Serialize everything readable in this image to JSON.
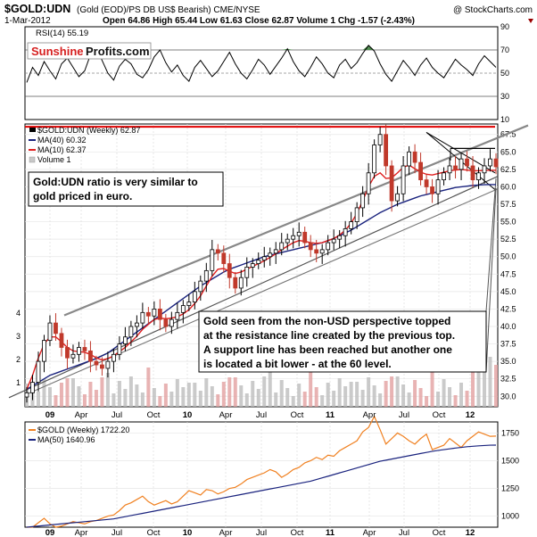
{
  "chart_data": [
    {
      "type": "line",
      "panel": "rsi",
      "title": "RSI(14) 55.19",
      "ylim": [
        10,
        90
      ],
      "y_ticks": [
        10,
        30,
        50,
        70,
        90
      ],
      "reference_lines": [
        30,
        50,
        70
      ],
      "series": [
        {
          "name": "RSI(14)",
          "values": [
            42,
            55,
            48,
            60,
            52,
            45,
            58,
            63,
            55,
            47,
            52,
            66,
            72,
            61,
            50,
            44,
            56,
            62,
            58,
            49,
            46,
            53,
            64,
            70,
            59,
            51,
            57,
            48,
            43,
            55,
            61,
            54,
            47,
            52,
            60,
            68,
            58,
            50,
            45,
            53,
            62,
            57,
            49,
            56,
            63,
            71,
            60,
            52,
            47,
            55,
            64,
            58,
            50,
            46,
            57,
            62,
            54,
            59,
            67,
            74,
            69,
            58,
            49,
            43,
            52,
            61,
            55,
            48,
            57,
            63,
            55,
            50,
            46,
            54,
            62,
            57,
            53,
            48,
            58,
            65,
            60,
            55
          ]
        }
      ],
      "overbought_fill_color": "#4b8a4b"
    },
    {
      "type": "candlestick",
      "panel": "price",
      "title": "$GOLD:UDN (Weekly) 62.87",
      "ylim": [
        28.5,
        69
      ],
      "y_ticks": [
        30.0,
        32.5,
        35.0,
        37.5,
        40.0,
        42.5,
        45.0,
        47.5,
        50.0,
        52.5,
        55.0,
        57.5,
        60.0,
        62.5,
        65.0,
        67.5
      ],
      "volume_ticks": [
        1,
        2,
        3,
        4
      ],
      "x_tick_labels": [
        "09",
        "Apr",
        "Jul",
        "Oct",
        "10",
        "Apr",
        "Jul",
        "Oct",
        "11",
        "Apr",
        "Jul",
        "Oct",
        "12"
      ],
      "close_series": [
        30.5,
        32,
        35,
        38,
        40.5,
        39,
        37,
        35.5,
        36,
        37,
        36.5,
        35,
        34.5,
        34,
        35,
        36,
        37.5,
        38.5,
        40,
        40.5,
        42,
        41.5,
        42.5,
        41,
        40,
        41,
        42,
        43,
        43.5,
        45,
        46.5,
        48,
        51,
        50.5,
        49,
        47,
        45.5,
        47,
        48.5,
        49,
        49.5,
        50,
        50.5,
        51,
        52,
        52.5,
        53,
        53.5,
        52,
        51,
        50.5,
        51,
        52,
        52.5,
        53,
        54,
        55,
        57,
        59,
        62,
        66,
        67.5,
        63,
        58,
        59,
        63,
        65,
        63.5,
        61,
        60,
        59,
        61,
        62,
        63,
        62.5,
        64,
        63,
        61,
        62,
        63,
        64,
        62.87
      ],
      "series": [
        {
          "name": "MA(40) 60.32",
          "color": "#1a237e",
          "values": [
            31,
            31.5,
            32,
            32.5,
            33,
            33.3,
            33.6,
            33.9,
            34.2,
            34.5,
            34.8,
            35.1,
            35.4,
            35.8,
            36.2,
            36.8,
            37.4,
            38,
            38.6,
            39.2,
            39.8,
            40.4,
            41,
            41.6,
            42.2,
            42.8,
            43.4,
            44,
            44.6,
            45.2,
            45.8,
            46.3,
            46.8,
            47.3,
            47.8,
            48.2,
            48.5,
            48.8,
            49.1,
            49.4,
            49.7,
            50,
            50.2,
            50.4,
            50.6,
            50.8,
            51,
            51.2,
            51.4,
            51.6,
            51.8,
            52,
            52.3,
            52.6,
            53,
            53.4,
            53.8,
            54.3,
            54.8,
            55.3,
            55.8,
            56.3,
            56.7,
            57.1,
            57.5,
            57.8,
            58.1,
            58.4,
            58.7,
            58.9,
            59.1,
            59.3,
            59.5,
            59.7,
            59.9,
            60,
            60.1,
            60.2,
            60.25,
            60.3,
            60.32,
            60.32
          ]
        },
        {
          "name": "MA(10) 62.37",
          "color": "#e02020",
          "values": [
            31,
            33,
            35.5,
            37.5,
            38.5,
            38.5,
            37.8,
            37,
            36.5,
            36.4,
            36.3,
            36,
            35.5,
            35.2,
            35.4,
            35.8,
            36.4,
            37,
            37.8,
            38.6,
            39.6,
            40.3,
            41,
            41.2,
            41.1,
            41.2,
            41.4,
            41.8,
            42.4,
            43.3,
            44.4,
            45.8,
            47.2,
            48.2,
            48.3,
            47.9,
            47.6,
            47.8,
            48.2,
            48.6,
            49,
            49.4,
            49.9,
            50.4,
            51,
            51.5,
            52,
            52.3,
            52.2,
            52,
            51.9,
            52,
            52.3,
            52.6,
            53.1,
            53.8,
            54.8,
            56.2,
            58,
            60,
            61.5,
            62,
            61.2,
            61.3,
            62,
            62.8,
            63.1,
            62.6,
            62.1,
            61.8,
            61.7,
            61.9,
            62.1,
            62.3,
            62.4,
            62.5,
            62.4,
            62.3,
            62.3,
            62.37,
            62.37,
            62.37
          ]
        },
        {
          "name": "Volume 1",
          "color": "#c8c8c8"
        }
      ],
      "annotations": [
        "Gold:UDN ratio is very similar to gold priced in euro.",
        "Gold seen from the non-USD perspective topped at the resistance line created by the previous top. A support line has been reached but another one is located a bit lower - at the 60 level."
      ],
      "resistance_level": 68.5,
      "up_color": "#000000",
      "down_color": "#c0392b"
    },
    {
      "type": "line",
      "panel": "gold",
      "title": "$GOLD (Weekly) 1722.20",
      "ylim": [
        900,
        1850
      ],
      "y_ticks": [
        1000,
        1250,
        1500,
        1750
      ],
      "x_tick_labels": [
        "09",
        "Apr",
        "Jul",
        "Oct",
        "10",
        "Apr",
        "Jul",
        "Oct",
        "11",
        "Apr",
        "Jul",
        "Oct",
        "12"
      ],
      "series": [
        {
          "name": "$GOLD (Weekly) 1722.20",
          "color": "#f08020",
          "values": [
            860,
            900,
            940,
            980,
            930,
            890,
            910,
            930,
            950,
            940,
            930,
            950,
            960,
            980,
            1000,
            1010,
            1050,
            1100,
            1120,
            1150,
            1180,
            1130,
            1100,
            1120,
            1140,
            1110,
            1130,
            1180,
            1230,
            1210,
            1190,
            1240,
            1230,
            1200,
            1220,
            1250,
            1260,
            1290,
            1330,
            1350,
            1370,
            1390,
            1420,
            1400,
            1350,
            1380,
            1420,
            1440,
            1480,
            1500,
            1530,
            1510,
            1550,
            1540,
            1590,
            1620,
            1650,
            1680,
            1760,
            1800,
            1900,
            1780,
            1650,
            1700,
            1750,
            1720,
            1680,
            1650,
            1700,
            1740,
            1600,
            1620,
            1640,
            1700,
            1660,
            1620,
            1680,
            1720,
            1760,
            1740,
            1720,
            1722.2
          ]
        },
        {
          "name": "MA(50) 1640.96",
          "color": "#1a237e",
          "values": [
            900,
            905,
            910,
            915,
            920,
            925,
            930,
            935,
            940,
            945,
            950,
            955,
            960,
            965,
            970,
            975,
            985,
            995,
            1005,
            1015,
            1025,
            1035,
            1045,
            1055,
            1065,
            1075,
            1085,
            1095,
            1105,
            1115,
            1125,
            1135,
            1145,
            1155,
            1165,
            1175,
            1185,
            1195,
            1205,
            1215,
            1225,
            1235,
            1245,
            1255,
            1265,
            1275,
            1285,
            1295,
            1305,
            1315,
            1330,
            1345,
            1360,
            1375,
            1390,
            1405,
            1420,
            1435,
            1450,
            1465,
            1480,
            1495,
            1505,
            1515,
            1525,
            1535,
            1545,
            1555,
            1565,
            1575,
            1585,
            1593,
            1600,
            1607,
            1614,
            1620,
            1626,
            1630,
            1634,
            1637,
            1640,
            1640.96
          ]
        }
      ]
    }
  ],
  "header": {
    "symbol_title": "$GOLD:UDN",
    "description": "(Gold (EOD)/PS DB US$ Bearish) CME/NYSE",
    "date": "1-Mar-2012",
    "quote": "Open 64.86  High 65.44  Low 61.63  Close 62.87  Volume 1  Chg -1.57 (-2.43%)",
    "credit": "@ StockCharts.com"
  },
  "branding": {
    "logo_part1": "Sunshine",
    "logo_part2": "Profits.com",
    "logo_color1": "#d61f1f",
    "logo_color2": "#111111"
  },
  "legend": {
    "price_title": "$GOLD:UDN (Weekly) 62.87",
    "ma40": "MA(40) 60.32",
    "ma10": "MA(10) 62.37",
    "volume": "Volume 1",
    "rsi_label": "RSI(14) 55.19",
    "gold_title": "$GOLD (Weekly) 1722.20",
    "gold_ma": "MA(50) 1640.96"
  }
}
